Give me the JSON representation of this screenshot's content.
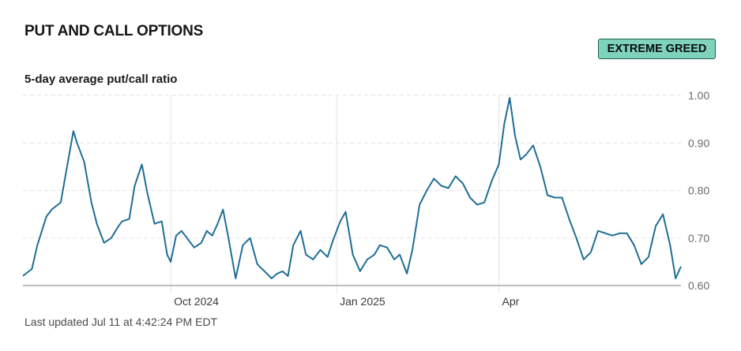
{
  "header": {
    "title": "PUT AND CALL OPTIONS",
    "badge": "EXTREME GREED",
    "subtitle": "5-day average put/call ratio"
  },
  "footer": {
    "updated": "Last updated Jul 11 at 4:42:24 PM EDT"
  },
  "colors": {
    "line": "#1f6e96",
    "badge_bg": "#7fd3bd",
    "grid": "#e2e2e2",
    "axis": "#bdbdbd"
  },
  "chart_data": {
    "type": "line",
    "title": "5-day average put/call ratio",
    "xlabel": "",
    "ylabel": "",
    "ylim": [
      0.6,
      1.0
    ],
    "xlim": [
      "2024-07-11",
      "2025-07-11"
    ],
    "yticks": [
      "1.00",
      "0.90",
      "0.80",
      "0.70",
      "0.60"
    ],
    "ytick_values": [
      1.0,
      0.9,
      0.8,
      0.7,
      0.6
    ],
    "xticks": [
      {
        "label": "Oct 2024",
        "date": "2024-10-01"
      },
      {
        "label": "Jan 2025",
        "date": "2025-01-01"
      },
      {
        "label": "Apr",
        "date": "2025-04-01"
      }
    ],
    "grid": "horizontal dashed, vertical at x ticks",
    "series": [
      {
        "x": [
          "2024-07-11",
          "2024-07-16",
          "2024-07-19",
          "2024-07-24",
          "2024-07-27",
          "2024-08-01",
          "2024-08-04",
          "2024-08-08",
          "2024-08-10",
          "2024-08-14",
          "2024-08-18",
          "2024-08-21",
          "2024-08-25",
          "2024-08-29",
          "2024-09-02",
          "2024-09-04",
          "2024-09-08",
          "2024-09-11",
          "2024-09-15",
          "2024-09-18",
          "2024-09-22",
          "2024-09-26",
          "2024-09-29",
          "2024-10-01",
          "2024-10-04",
          "2024-10-07",
          "2024-10-10",
          "2024-10-14",
          "2024-10-18",
          "2024-10-21",
          "2024-10-24",
          "2024-10-27",
          "2024-10-30",
          "2024-11-02",
          "2024-11-06",
          "2024-11-10",
          "2024-11-14",
          "2024-11-18",
          "2024-11-22",
          "2024-11-26",
          "2024-11-29",
          "2024-12-02",
          "2024-12-05",
          "2024-12-08",
          "2024-12-12",
          "2024-12-15",
          "2024-12-19",
          "2024-12-23",
          "2024-12-27",
          "2024-12-30",
          "2025-01-03",
          "2025-01-06",
          "2025-01-10",
          "2025-01-14",
          "2025-01-18",
          "2025-01-22",
          "2025-01-25",
          "2025-01-29",
          "2025-02-02",
          "2025-02-05",
          "2025-02-09",
          "2025-02-12",
          "2025-02-16",
          "2025-02-20",
          "2025-02-24",
          "2025-02-28",
          "2025-03-04",
          "2025-03-08",
          "2025-03-12",
          "2025-03-16",
          "2025-03-20",
          "2025-03-24",
          "2025-03-28",
          "2025-04-01",
          "2025-04-04",
          "2025-04-07",
          "2025-04-10",
          "2025-04-13",
          "2025-04-16",
          "2025-04-20",
          "2025-04-24",
          "2025-04-28",
          "2025-05-02",
          "2025-05-06",
          "2025-05-10",
          "2025-05-14",
          "2025-05-18",
          "2025-05-22",
          "2025-05-26",
          "2025-05-30",
          "2025-06-03",
          "2025-06-07",
          "2025-06-11",
          "2025-06-15",
          "2025-06-19",
          "2025-06-23",
          "2025-06-27",
          "2025-07-01",
          "2025-07-05",
          "2025-07-08",
          "2025-07-11"
        ],
        "values": [
          0.62,
          0.635,
          0.685,
          0.745,
          0.76,
          0.775,
          0.84,
          0.925,
          0.9,
          0.86,
          0.775,
          0.73,
          0.69,
          0.7,
          0.725,
          0.735,
          0.74,
          0.81,
          0.855,
          0.795,
          0.73,
          0.735,
          0.665,
          0.65,
          0.705,
          0.715,
          0.7,
          0.68,
          0.69,
          0.715,
          0.705,
          0.73,
          0.76,
          0.7,
          0.615,
          0.685,
          0.7,
          0.645,
          0.63,
          0.615,
          0.625,
          0.63,
          0.62,
          0.685,
          0.715,
          0.665,
          0.655,
          0.675,
          0.66,
          0.695,
          0.735,
          0.755,
          0.665,
          0.63,
          0.655,
          0.665,
          0.685,
          0.68,
          0.655,
          0.665,
          0.625,
          0.675,
          0.77,
          0.8,
          0.825,
          0.81,
          0.805,
          0.83,
          0.815,
          0.785,
          0.77,
          0.775,
          0.82,
          0.855,
          0.94,
          0.995,
          0.915,
          0.865,
          0.875,
          0.895,
          0.85,
          0.79,
          0.785,
          0.785,
          0.74,
          0.7,
          0.655,
          0.67,
          0.715,
          0.71,
          0.705,
          0.71,
          0.71,
          0.685,
          0.645,
          0.66,
          0.725,
          0.75,
          0.685,
          0.615,
          0.64
        ]
      }
    ]
  }
}
